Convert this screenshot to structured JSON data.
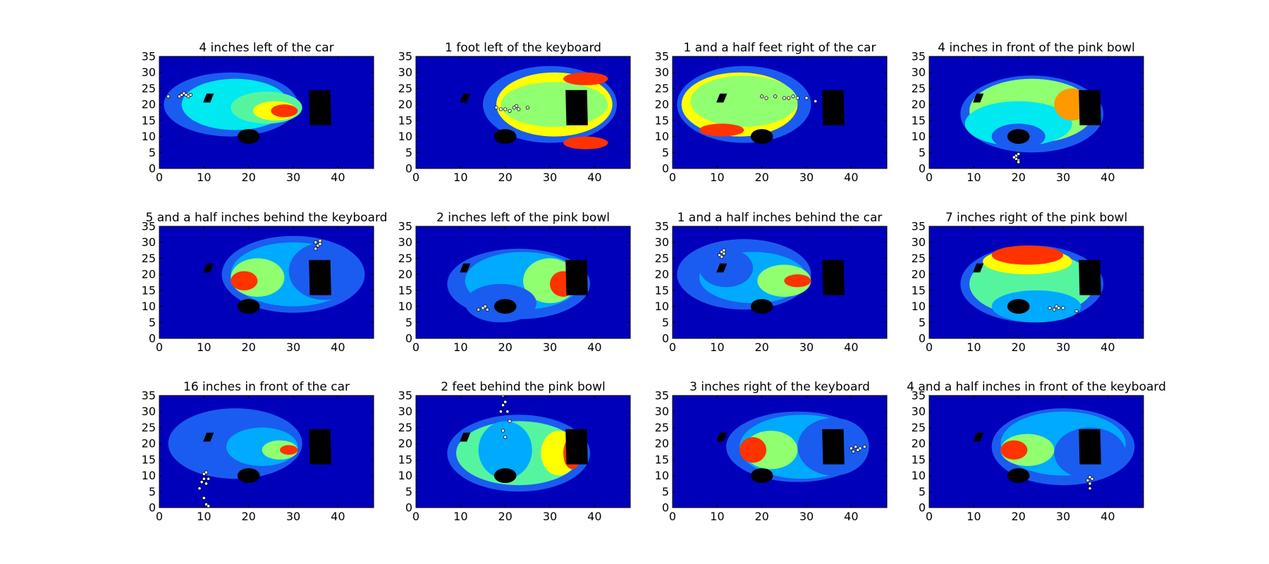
{
  "figure": {
    "colors": {
      "background": "#0000bb",
      "level1": "#1a5cf0",
      "level2": "#00aaff",
      "level3": "#00e8f0",
      "level4": "#55f5a0",
      "level5": "#90ff70",
      "level6": "#ffff00",
      "level7": "#ff9900",
      "level8": "#ff3300",
      "level9": "#cc0000",
      "objects": "#000000",
      "samples": "#ffffff"
    }
  },
  "chart_data": [
    {
      "type": "heatmap",
      "title": "4 inches left of the car",
      "xlim": [
        0,
        48
      ],
      "ylim": [
        0,
        35
      ],
      "xticks": [
        "0",
        "10",
        "20",
        "30",
        "40"
      ],
      "yticks": [
        "0",
        "5",
        "10",
        "15",
        "20",
        "25",
        "30",
        "35"
      ],
      "grid": false,
      "levels": [
        {
          "cx": 16,
          "cy": 20,
          "rx": 15,
          "ry": 10,
          "level": 1
        },
        {
          "cx": 17,
          "cy": 20,
          "rx": 12,
          "ry": 8,
          "level": 3
        },
        {
          "cx": 24,
          "cy": 19,
          "rx": 8,
          "ry": 5,
          "level": 4
        },
        {
          "cx": 26,
          "cy": 18,
          "rx": 5,
          "ry": 3,
          "level": 6
        },
        {
          "cx": 28,
          "cy": 18,
          "rx": 3,
          "ry": 2,
          "level": 8
        }
      ],
      "samples": [
        [
          2,
          22.5
        ],
        [
          4.5,
          22.5
        ],
        [
          5,
          23
        ],
        [
          5.5,
          23.5
        ],
        [
          6,
          23
        ],
        [
          6.5,
          22.5
        ],
        [
          7,
          23
        ]
      ]
    },
    {
      "type": "heatmap",
      "title": "1 foot left of the keyboard",
      "xlim": [
        0,
        48
      ],
      "ylim": [
        0,
        35
      ],
      "xticks": [
        "0",
        "10",
        "20",
        "30",
        "40"
      ],
      "yticks": [
        "0",
        "5",
        "10",
        "15",
        "20",
        "25",
        "30",
        "35"
      ],
      "grid": false,
      "levels": [
        {
          "cx": 30,
          "cy": 20,
          "rx": 15,
          "ry": 12,
          "level": 1
        },
        {
          "cx": 31,
          "cy": 20,
          "rx": 13,
          "ry": 10,
          "level": 6
        },
        {
          "cx": 31,
          "cy": 20,
          "rx": 12,
          "ry": 7,
          "level": 5
        },
        {
          "cx": 38,
          "cy": 28,
          "rx": 5,
          "ry": 2,
          "level": 8
        },
        {
          "cx": 38,
          "cy": 8,
          "rx": 5,
          "ry": 2,
          "level": 8
        }
      ],
      "samples": [
        [
          18,
          19
        ],
        [
          19,
          18.5
        ],
        [
          20,
          18.5
        ],
        [
          21,
          18
        ],
        [
          22,
          19
        ],
        [
          23,
          18.5
        ],
        [
          22.5,
          19.5
        ],
        [
          25,
          19
        ]
      ]
    },
    {
      "type": "heatmap",
      "title": "1 and a half feet right of the car",
      "xlim": [
        0,
        48
      ],
      "ylim": [
        0,
        35
      ],
      "xticks": [
        "0",
        "10",
        "20",
        "30",
        "40"
      ],
      "yticks": [
        "0",
        "5",
        "10",
        "15",
        "20",
        "25",
        "30",
        "35"
      ],
      "grid": false,
      "levels": [
        {
          "cx": 16,
          "cy": 20,
          "rx": 15,
          "ry": 12,
          "level": 1
        },
        {
          "cx": 15,
          "cy": 20,
          "rx": 13,
          "ry": 10,
          "level": 6
        },
        {
          "cx": 16,
          "cy": 21,
          "rx": 12,
          "ry": 8,
          "level": 5
        },
        {
          "cx": 11,
          "cy": 12,
          "rx": 5,
          "ry": 2,
          "level": 8
        }
      ],
      "samples": [
        [
          20,
          22.5
        ],
        [
          21,
          22
        ],
        [
          23,
          22.5
        ],
        [
          25,
          22
        ],
        [
          26,
          22
        ],
        [
          27,
          22.5
        ],
        [
          28,
          22
        ],
        [
          30,
          22
        ],
        [
          32,
          21
        ]
      ]
    },
    {
      "type": "heatmap",
      "title": "4 inches in front of the pink bowl",
      "xlim": [
        0,
        48
      ],
      "ylim": [
        0,
        35
      ],
      "xticks": [
        "0",
        "10",
        "20",
        "30",
        "40"
      ],
      "yticks": [
        "0",
        "5",
        "10",
        "15",
        "20",
        "25",
        "30",
        "35"
      ],
      "grid": false,
      "levels": [
        {
          "cx": 23,
          "cy": 17,
          "rx": 16,
          "ry": 12,
          "level": 1
        },
        {
          "cx": 23,
          "cy": 18,
          "rx": 14,
          "ry": 10,
          "level": 5
        },
        {
          "cx": 20,
          "cy": 14,
          "rx": 12,
          "ry": 7,
          "level": 3
        },
        {
          "cx": 20,
          "cy": 10,
          "rx": 6,
          "ry": 4,
          "level": 1
        },
        {
          "cx": 32,
          "cy": 20,
          "rx": 4,
          "ry": 5,
          "level": 7
        }
      ],
      "samples": [
        [
          19.5,
          4
        ],
        [
          20,
          4.5
        ],
        [
          19.5,
          3
        ],
        [
          20,
          2.5
        ],
        [
          19,
          3.5
        ],
        [
          20,
          2
        ]
      ]
    },
    {
      "type": "heatmap",
      "title": "5 and a half inches behind the keyboard",
      "xlim": [
        0,
        48
      ],
      "ylim": [
        0,
        35
      ],
      "xticks": [
        "0",
        "10",
        "20",
        "30",
        "40"
      ],
      "yticks": [
        "0",
        "5",
        "10",
        "15",
        "20",
        "25",
        "30",
        "35"
      ],
      "grid": false,
      "levels": [
        {
          "cx": 30,
          "cy": 20,
          "rx": 16,
          "ry": 12,
          "level": 1
        },
        {
          "cx": 30,
          "cy": 20,
          "rx": 14,
          "ry": 10,
          "level": 2
        },
        {
          "cx": 22,
          "cy": 19,
          "rx": 6,
          "ry": 6,
          "level": 5
        },
        {
          "cx": 19,
          "cy": 18,
          "rx": 3,
          "ry": 3,
          "level": 8
        },
        {
          "cx": 37,
          "cy": 21,
          "rx": 8,
          "ry": 9,
          "level": 1
        }
      ],
      "samples": [
        [
          35,
          30
        ],
        [
          36,
          30.5
        ],
        [
          35.5,
          29
        ],
        [
          35,
          28
        ],
        [
          36,
          29.5
        ]
      ]
    },
    {
      "type": "heatmap",
      "title": "2 inches left of the pink bowl",
      "xlim": [
        0,
        48
      ],
      "ylim": [
        0,
        35
      ],
      "xticks": [
        "0",
        "10",
        "20",
        "30",
        "40"
      ],
      "yticks": [
        "0",
        "5",
        "10",
        "15",
        "20",
        "25",
        "30",
        "35"
      ],
      "grid": false,
      "levels": [
        {
          "cx": 23,
          "cy": 17,
          "rx": 16,
          "ry": 11,
          "level": 1
        },
        {
          "cx": 24,
          "cy": 18,
          "rx": 13,
          "ry": 9,
          "level": 2
        },
        {
          "cx": 30,
          "cy": 18,
          "rx": 6,
          "ry": 7,
          "level": 5
        },
        {
          "cx": 33,
          "cy": 17,
          "rx": 3,
          "ry": 4,
          "level": 8
        },
        {
          "cx": 19,
          "cy": 11,
          "rx": 8,
          "ry": 6,
          "level": 1
        }
      ],
      "samples": [
        [
          14,
          9
        ],
        [
          15,
          9.5
        ],
        [
          16,
          9
        ],
        [
          15.5,
          10
        ]
      ]
    },
    {
      "type": "heatmap",
      "title": "1 and a half inches behind the car",
      "xlim": [
        0,
        48
      ],
      "ylim": [
        0,
        35
      ],
      "xticks": [
        "0",
        "10",
        "20",
        "30",
        "40"
      ],
      "yticks": [
        "0",
        "5",
        "10",
        "15",
        "20",
        "25",
        "30",
        "35"
      ],
      "grid": false,
      "levels": [
        {
          "cx": 16,
          "cy": 20,
          "rx": 15,
          "ry": 11,
          "level": 1
        },
        {
          "cx": 18,
          "cy": 19,
          "rx": 12,
          "ry": 8,
          "level": 2
        },
        {
          "cx": 25,
          "cy": 18,
          "rx": 6,
          "ry": 5,
          "level": 5
        },
        {
          "cx": 28,
          "cy": 18,
          "rx": 3,
          "ry": 2,
          "level": 8
        },
        {
          "cx": 12,
          "cy": 22,
          "rx": 6,
          "ry": 6,
          "level": 1
        }
      ],
      "samples": [
        [
          11,
          27
        ],
        [
          11.5,
          27.5
        ],
        [
          10.5,
          26
        ],
        [
          11,
          25.5
        ],
        [
          11.5,
          26.5
        ]
      ]
    },
    {
      "type": "heatmap",
      "title": "7 inches right of the pink bowl",
      "xlim": [
        0,
        48
      ],
      "ylim": [
        0,
        35
      ],
      "xticks": [
        "0",
        "10",
        "20",
        "30",
        "40"
      ],
      "yticks": [
        "0",
        "5",
        "10",
        "15",
        "20",
        "25",
        "30",
        "35"
      ],
      "grid": false,
      "levels": [
        {
          "cx": 23,
          "cy": 17,
          "rx": 16,
          "ry": 12,
          "level": 1
        },
        {
          "cx": 23,
          "cy": 17,
          "rx": 14,
          "ry": 10,
          "level": 4
        },
        {
          "cx": 22,
          "cy": 24,
          "rx": 10,
          "ry": 4,
          "level": 6
        },
        {
          "cx": 22,
          "cy": 26,
          "rx": 8,
          "ry": 3,
          "level": 8
        },
        {
          "cx": 24,
          "cy": 10,
          "rx": 10,
          "ry": 5,
          "level": 2
        }
      ],
      "samples": [
        [
          27,
          9.5
        ],
        [
          28,
          9
        ],
        [
          28.5,
          10
        ],
        [
          29,
          9.5
        ],
        [
          30,
          9.5
        ],
        [
          33,
          8.5
        ]
      ]
    },
    {
      "type": "heatmap",
      "title": "16 inches in front of the car",
      "xlim": [
        0,
        48
      ],
      "ylim": [
        0,
        35
      ],
      "xticks": [
        "0",
        "10",
        "20",
        "30",
        "40"
      ],
      "yticks": [
        "0",
        "5",
        "10",
        "15",
        "20",
        "25",
        "30",
        "35"
      ],
      "grid": false,
      "levels": [
        {
          "cx": 17,
          "cy": 20,
          "rx": 15,
          "ry": 11,
          "level": 1
        },
        {
          "cx": 18,
          "cy": 20,
          "rx": 12,
          "ry": 9,
          "level": 1
        },
        {
          "cx": 23,
          "cy": 19,
          "rx": 8,
          "ry": 6,
          "level": 2
        },
        {
          "cx": 27,
          "cy": 18,
          "rx": 4,
          "ry": 3,
          "level": 5
        },
        {
          "cx": 29,
          "cy": 18,
          "rx": 2,
          "ry": 1.5,
          "level": 8
        }
      ],
      "samples": [
        [
          10,
          10.5
        ],
        [
          10.5,
          11
        ],
        [
          10,
          9
        ],
        [
          11,
          9
        ],
        [
          9.5,
          8
        ],
        [
          10.5,
          7.5
        ],
        [
          9,
          6
        ],
        [
          10,
          3
        ],
        [
          10.5,
          1
        ],
        [
          11,
          0.5
        ]
      ]
    },
    {
      "type": "heatmap",
      "title": "2 feet behind the pink bowl",
      "xlim": [
        0,
        48
      ],
      "ylim": [
        0,
        35
      ],
      "xticks": [
        "0",
        "10",
        "20",
        "30",
        "40"
      ],
      "yticks": [
        "0",
        "5",
        "10",
        "15",
        "20",
        "25",
        "30",
        "35"
      ],
      "grid": false,
      "levels": [
        {
          "cx": 23,
          "cy": 17,
          "rx": 16,
          "ry": 12,
          "level": 1
        },
        {
          "cx": 23,
          "cy": 17,
          "rx": 14,
          "ry": 10,
          "level": 4
        },
        {
          "cx": 20,
          "cy": 18,
          "rx": 6,
          "ry": 9,
          "level": 2
        },
        {
          "cx": 32,
          "cy": 17,
          "rx": 4,
          "ry": 7,
          "level": 6
        },
        {
          "cx": 35,
          "cy": 17,
          "rx": 2,
          "ry": 5,
          "level": 8
        }
      ],
      "samples": [
        [
          19.5,
          35
        ],
        [
          20,
          33
        ],
        [
          19.5,
          32
        ],
        [
          20.5,
          30
        ],
        [
          19,
          30
        ],
        [
          21,
          27
        ],
        [
          19.5,
          24
        ],
        [
          20,
          22
        ]
      ]
    },
    {
      "type": "heatmap",
      "title": "3 inches right of the keyboard",
      "xlim": [
        0,
        48
      ],
      "ylim": [
        0,
        35
      ],
      "xticks": [
        "0",
        "10",
        "20",
        "30",
        "40"
      ],
      "yticks": [
        "0",
        "5",
        "10",
        "15",
        "20",
        "25",
        "30",
        "35"
      ],
      "grid": false,
      "levels": [
        {
          "cx": 28,
          "cy": 19,
          "rx": 16,
          "ry": 11,
          "level": 1
        },
        {
          "cx": 29,
          "cy": 19,
          "rx": 14,
          "ry": 10,
          "level": 2
        },
        {
          "cx": 22,
          "cy": 18,
          "rx": 6,
          "ry": 6,
          "level": 5
        },
        {
          "cx": 18,
          "cy": 18,
          "rx": 3,
          "ry": 4,
          "level": 8
        },
        {
          "cx": 36,
          "cy": 19,
          "rx": 8,
          "ry": 9,
          "level": 1
        }
      ],
      "samples": [
        [
          40,
          18.5
        ],
        [
          41,
          19
        ],
        [
          42,
          18.5
        ],
        [
          41.5,
          18
        ],
        [
          40.5,
          17.5
        ],
        [
          43,
          19
        ]
      ]
    },
    {
      "type": "heatmap",
      "title": "4 and a half inches in front of the keyboard",
      "xlim": [
        0,
        48
      ],
      "ylim": [
        0,
        35
      ],
      "xticks": [
        "0",
        "10",
        "20",
        "30",
        "40"
      ],
      "yticks": [
        "0",
        "5",
        "10",
        "15",
        "20",
        "25",
        "30",
        "35"
      ],
      "grid": false,
      "levels": [
        {
          "cx": 30,
          "cy": 19,
          "rx": 16,
          "ry": 12,
          "level": 1
        },
        {
          "cx": 30,
          "cy": 20,
          "rx": 14,
          "ry": 10,
          "level": 2
        },
        {
          "cx": 22,
          "cy": 18,
          "rx": 6,
          "ry": 5,
          "level": 5
        },
        {
          "cx": 19,
          "cy": 18,
          "rx": 3,
          "ry": 3,
          "level": 8
        },
        {
          "cx": 36,
          "cy": 17,
          "rx": 8,
          "ry": 8,
          "level": 1
        }
      ],
      "samples": [
        [
          36,
          9.5
        ],
        [
          36.5,
          9
        ],
        [
          35.5,
          8.5
        ],
        [
          36,
          7.5
        ],
        [
          36,
          6
        ]
      ]
    }
  ],
  "objects": {
    "car": {
      "cx": 11,
      "cy": 22,
      "w": 1.6,
      "h": 2.8,
      "skew": -0.4
    },
    "bowl": {
      "cx": 20,
      "cy": 10,
      "rx": 2.5,
      "ry": 2.3
    },
    "keyboard": {
      "x1": 33.5,
      "x2": 38.5,
      "y1": 13.5,
      "y2": 24.5
    }
  }
}
